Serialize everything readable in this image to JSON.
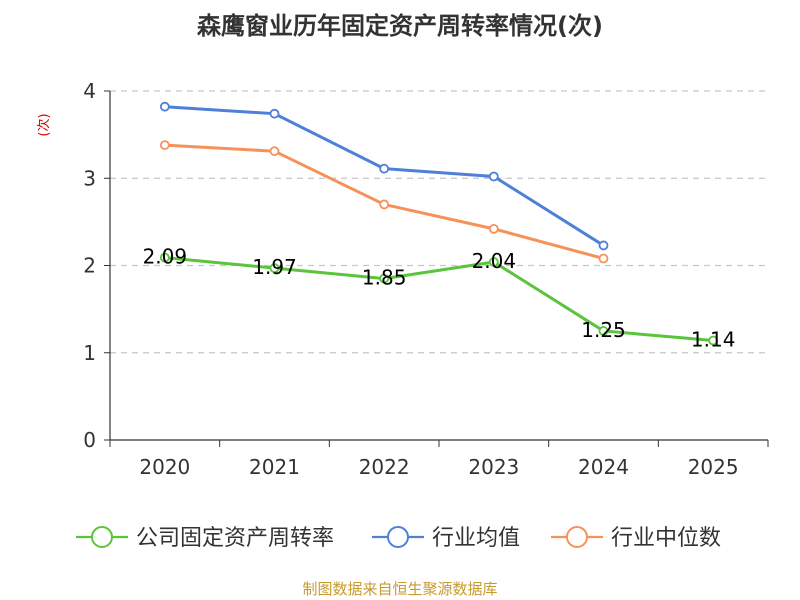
{
  "chart_data": {
    "type": "line",
    "title": "森鹰窗业历年固定资产周转率情况(次)",
    "ylabel": "(次)",
    "xlabel": "",
    "ylim": [
      0,
      4
    ],
    "yticks": [
      0,
      1,
      2,
      3,
      4
    ],
    "categories": [
      "2020",
      "2021",
      "2022",
      "2023",
      "2024",
      "2025"
    ],
    "series": [
      {
        "name": "公司固定资产周转率",
        "color": "#5ac43a",
        "values": [
          2.09,
          1.97,
          1.85,
          2.04,
          1.25,
          1.14
        ],
        "labels": [
          "2.09",
          "1.97",
          "1.85",
          "2.04",
          "1.25",
          "1.14"
        ]
      },
      {
        "name": "行业均值",
        "color": "#4e7fd9",
        "values": [
          3.82,
          3.74,
          3.11,
          3.02,
          2.23,
          null
        ]
      },
      {
        "name": "行业中位数",
        "color": "#f7915a",
        "values": [
          3.38,
          3.31,
          2.7,
          2.42,
          2.08,
          null
        ]
      }
    ],
    "grid": true,
    "legend_position": "bottom"
  },
  "source": "制图数据来自恒生聚源数据库"
}
